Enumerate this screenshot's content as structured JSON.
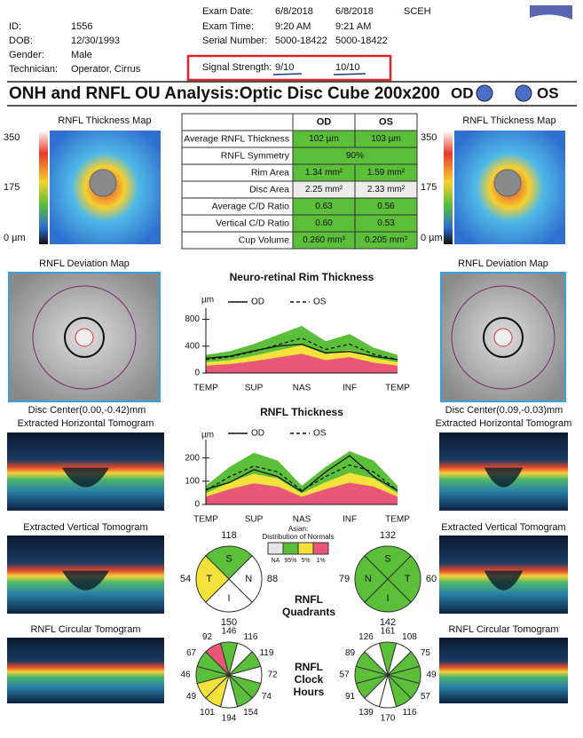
{
  "header": {
    "patient": [
      {
        "label": "ID:",
        "value": "1556"
      },
      {
        "label": "DOB:",
        "value": "12/30/1993"
      },
      {
        "label": "Gender:",
        "value": "Male"
      },
      {
        "label": "Technician:",
        "value": "Operator, Cirrus"
      }
    ],
    "exam": [
      {
        "label": "Exam Date:",
        "od": "6/8/2018",
        "os": "6/8/2018"
      },
      {
        "label": "Exam Time:",
        "od": "9:20 AM",
        "os": "9:21 AM"
      },
      {
        "label": "Serial Number:",
        "od": "5000-18422",
        "os": "5000-18422"
      },
      {
        "label": "Signal Strength:",
        "od": "9/10",
        "os": "10/10"
      }
    ],
    "site": "SCEH"
  },
  "title": "ONH and RNFL OU Analysis:Optic Disc Cube 200x200",
  "od_label": "OD",
  "os_label": "OS",
  "thickness_map": {
    "title": "RNFL Thickness Map",
    "od_scale": [
      "350",
      "175",
      "0 µm"
    ],
    "os_scale": [
      "350",
      "175",
      "0 µm"
    ]
  },
  "table": {
    "columns": [
      "OD",
      "OS"
    ],
    "rows": [
      {
        "label": "Average RNFL Thickness",
        "values": [
          "102 µm",
          "103 µm"
        ]
      },
      {
        "label": "RNFL Symmetry",
        "values": [
          "90%"
        ]
      },
      {
        "label": "Rim Area",
        "values": [
          "1.34 mm²",
          "1.59 mm²"
        ]
      },
      {
        "label": "Disc Area",
        "values": [
          "2.25 mm²",
          "2.33 mm²"
        ]
      },
      {
        "label": "Average C/D Ratio",
        "values": [
          "0.63",
          "0.56"
        ]
      },
      {
        "label": "Vertical C/D Ratio",
        "values": [
          "0.60",
          "0.53"
        ]
      },
      {
        "label": "Cup Volume",
        "values": [
          "0.260 mm³",
          "0.205 mm³"
        ]
      }
    ]
  },
  "deviation_map": {
    "title": "RNFL Deviation Map",
    "od_center": "Disc Center(0.00,-0.42)mm",
    "os_center": "Disc Center(0.09,-0.03)mm"
  },
  "tomograms": [
    "Extracted Horizontal Tomogram",
    "Extracted Vertical Tomogram",
    "RNFL Circular Tomogram"
  ],
  "rim_chart": {
    "title": "Neuro-retinal Rim Thickness",
    "unit": "µm",
    "ylim": [
      0,
      900
    ],
    "yticks": [
      0,
      400,
      800
    ],
    "xticks": [
      "TEMP",
      "SUP",
      "NAS",
      "INF",
      "TEMP"
    ],
    "series": [
      {
        "name": "OD",
        "dash": false,
        "values": [
          220,
          250,
          330,
          400,
          430,
          300,
          320,
          250,
          200
        ]
      },
      {
        "name": "OS",
        "dash": true,
        "values": [
          200,
          240,
          320,
          420,
          520,
          350,
          430,
          280,
          200
        ]
      }
    ]
  },
  "rnfl_chart": {
    "title": "RNFL Thickness",
    "unit": "µm",
    "ylim": [
      0,
      260
    ],
    "yticks": [
      0,
      100,
      200
    ],
    "xticks": [
      "TEMP",
      "SUP",
      "NAS",
      "INF",
      "TEMP"
    ],
    "series": [
      {
        "name": "OD",
        "dash": false,
        "values": [
          65,
          95,
          150,
          120,
          55,
          140,
          210,
          120,
          60
        ]
      },
      {
        "name": "OS",
        "dash": true,
        "values": [
          60,
          120,
          165,
          140,
          60,
          120,
          170,
          140,
          60
        ]
      }
    ]
  },
  "legend": {
    "title": "Asian:",
    "subtitle": "Distribution of Normals",
    "entries": [
      {
        "label": "NA",
        "color": "#e6e6e6"
      },
      {
        "label": "95%",
        "color": "#5bbf3a"
      },
      {
        "label": "5%",
        "color": "#f2e23a"
      },
      {
        "label": "1%",
        "color": "#e8577a"
      }
    ]
  },
  "quadrants": {
    "label": [
      "RNFL",
      "Quadrants"
    ],
    "od": [
      {
        "letter": "S",
        "value": 118,
        "color": "#5bbf3a"
      },
      {
        "letter": "N",
        "value": 88,
        "color": "#ffffff"
      },
      {
        "letter": "I",
        "value": 150,
        "color": "#ffffff"
      },
      {
        "letter": "T",
        "value": 54,
        "color": "#f2e23a"
      }
    ],
    "os": [
      {
        "letter": "S",
        "value": 132,
        "color": "#5bbf3a"
      },
      {
        "letter": "T",
        "value": 60,
        "color": "#5bbf3a"
      },
      {
        "letter": "I",
        "value": 142,
        "color": "#5bbf3a"
      },
      {
        "letter": "N",
        "value": 79,
        "color": "#5bbf3a"
      }
    ]
  },
  "clock_hours": {
    "label": [
      "RNFL",
      "Clock",
      "Hours"
    ],
    "od": [
      {
        "value": 146,
        "color": "#5bbf3a"
      },
      {
        "value": 116,
        "color": "#ffffff"
      },
      {
        "value": 119,
        "color": "#5bbf3a"
      },
      {
        "value": 72,
        "color": "#ffffff"
      },
      {
        "value": 74,
        "color": "#5bbf3a"
      },
      {
        "value": 154,
        "color": "#5bbf3a"
      },
      {
        "value": 194,
        "color": "#ffffff"
      },
      {
        "value": 101,
        "color": "#f2e23a"
      },
      {
        "value": 49,
        "color": "#f2e23a"
      },
      {
        "value": 46,
        "color": "#5bbf3a"
      },
      {
        "value": 67,
        "color": "#5bbf3a"
      },
      {
        "value": 92,
        "color": "#e8577a"
      }
    ],
    "os": [
      {
        "value": 161,
        "color": "#5bbf3a"
      },
      {
        "value": 108,
        "color": "#ffffff"
      },
      {
        "value": 75,
        "color": "#5bbf3a"
      },
      {
        "value": 49,
        "color": "#5bbf3a"
      },
      {
        "value": 57,
        "color": "#5bbf3a"
      },
      {
        "value": 116,
        "color": "#5bbf3a"
      },
      {
        "value": 170,
        "color": "#ffffff"
      },
      {
        "value": 139,
        "color": "#ffffff"
      },
      {
        "value": 91,
        "color": "#5bbf3a"
      },
      {
        "value": 57,
        "color": "#5bbf3a"
      },
      {
        "value": 89,
        "color": "#5bbf3a"
      },
      {
        "value": 126,
        "color": "#ffffff"
      }
    ]
  }
}
